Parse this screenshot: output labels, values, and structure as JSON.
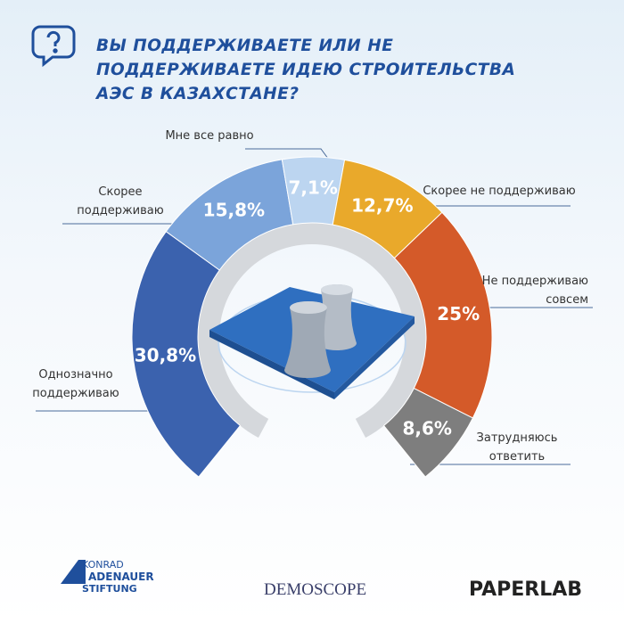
{
  "chart_data": {
    "type": "donut",
    "title": "ВЫ ПОДДЕРЖИВАЕТЕ ИЛИ НЕ ПОДДЕРЖИВАЕТЕ ИДЕЮ СТРОИТЕЛЬСТВА АЭС В КАЗАХСТАНЕ?",
    "categories": [
      "Однозначно поддерживаю",
      "Скорее поддерживаю",
      "Мне все равно",
      "Скорее не поддерживаю",
      "Не поддерживаю совсем",
      "Затрудняюсь ответить"
    ],
    "values": [
      30.8,
      15.8,
      7.1,
      12.7,
      25,
      8.6
    ],
    "value_labels": [
      "30,8%",
      "15,8%",
      "7,1%",
      "12,7%",
      "25%",
      "8,6%"
    ],
    "colors": [
      "#3b62ae",
      "#7ba4da",
      "#bcd5f0",
      "#e9a92b",
      "#d45a29",
      "#7e7e7e"
    ]
  },
  "logos": {
    "kas": [
      "KONRAD",
      "ADENAUER",
      "STIFTUNG"
    ],
    "demoscope": "DEMOSCOPE",
    "paperlab": "PAPERLAB"
  }
}
